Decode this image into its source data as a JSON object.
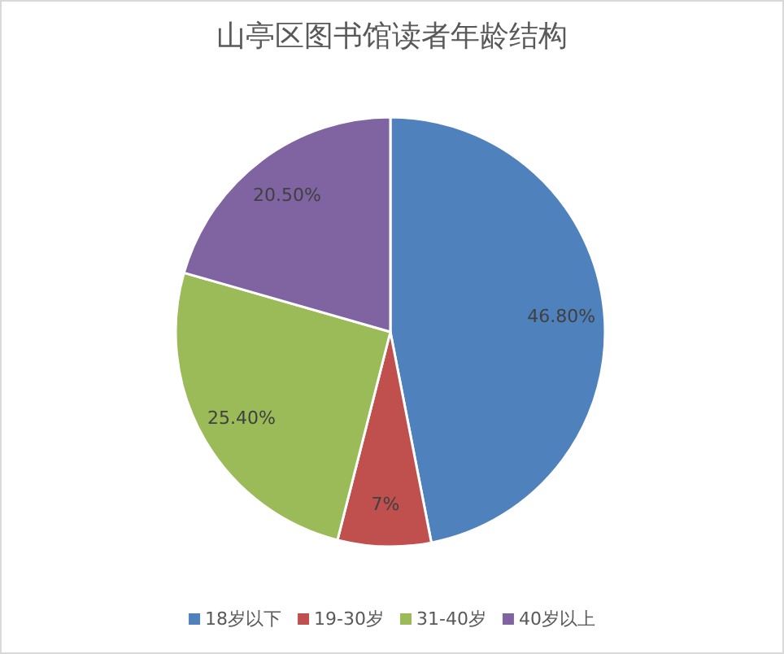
{
  "chart_data": {
    "type": "pie",
    "title": "山亭区图书馆读者年龄结构",
    "categories": [
      "18岁以下",
      "19-30岁",
      "31-40岁",
      "40岁以上"
    ],
    "values": [
      46.8,
      7,
      25.4,
      20.5
    ],
    "value_labels": [
      "46.80%",
      "7%",
      "25.40%",
      "20.50%"
    ],
    "colors": [
      "#4f81bd",
      "#c0504d",
      "#9bbb59",
      "#8064a2"
    ],
    "legend": "bottom"
  }
}
